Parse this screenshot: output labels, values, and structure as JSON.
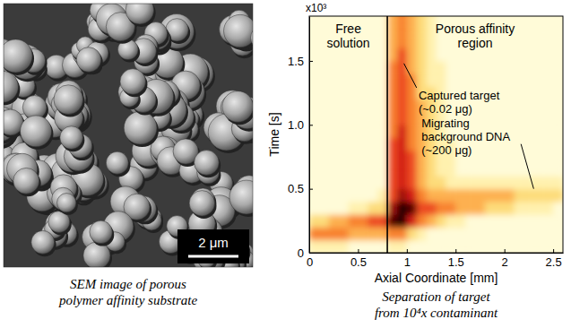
{
  "sem_panel": {
    "scale_bar": "2 μm",
    "caption": "SEM image of porous polymer affinity substrate"
  },
  "chart_data": {
    "type": "heatmap",
    "caption": "Separation of target from 10⁴x contaminant",
    "x_label": "Axial Coordinate [mm]",
    "y_label": "Time [s]",
    "y_multiplier": "x10³",
    "xlim": [
      0,
      2.6
    ],
    "ylim": [
      0,
      1.85
    ],
    "xticks": [
      0,
      0.5,
      1,
      1.5,
      2,
      2.5
    ],
    "yticks": [
      0,
      0.5,
      {
        "value": 1,
        "label": "1.0"
      },
      1.5
    ],
    "x_bins": [
      0,
      0.1,
      0.2,
      0.3,
      0.4,
      0.5,
      0.6,
      0.7,
      0.8,
      0.9,
      1,
      1.1,
      1.2,
      1.3,
      1.4,
      1.5,
      1.6,
      1.7,
      1.8,
      1.9,
      2,
      2.1,
      2.2,
      2.3,
      2.4,
      2.5,
      2.6
    ],
    "y_bins": [
      0,
      0.1,
      0.2,
      0.3,
      0.4,
      0.5,
      0.6,
      0.7,
      0.8,
      0.9,
      1,
      1.1,
      1.2,
      1.3,
      1.4,
      1.5,
      1.6,
      1.7,
      1.8,
      1.9
    ],
    "cells": [
      [
        1,
        1,
        1,
        1,
        0,
        0,
        0,
        0,
        1,
        1,
        0,
        0,
        0,
        0,
        0,
        0,
        0,
        0,
        0,
        0,
        0,
        0,
        0,
        0,
        0,
        0
      ],
      [
        4,
        4,
        4,
        4,
        3,
        3,
        3,
        3,
        4,
        4,
        2,
        1,
        0,
        0,
        0,
        0,
        0,
        0,
        0,
        0,
        0,
        0,
        0,
        0,
        0,
        0
      ],
      [
        2,
        2,
        3,
        3,
        4,
        4,
        5,
        5,
        8,
        9,
        6,
        4,
        3,
        2,
        1,
        1,
        0,
        0,
        0,
        0,
        0,
        0,
        0,
        0,
        0,
        0
      ],
      [
        0,
        0,
        0,
        0,
        1,
        1,
        2,
        2,
        7,
        9,
        8,
        5,
        5,
        4,
        4,
        3,
        3,
        3,
        2,
        2,
        2,
        1,
        1,
        1,
        1,
        0
      ],
      [
        0,
        0,
        0,
        0,
        0,
        0,
        0,
        1,
        5,
        7,
        6,
        4,
        3,
        3,
        3,
        3,
        3,
        3,
        3,
        3,
        3,
        2,
        2,
        2,
        2,
        2
      ],
      [
        0,
        0,
        0,
        0,
        0,
        0,
        0,
        0,
        5,
        6,
        5,
        3,
        2,
        2,
        1,
        1,
        1,
        1,
        1,
        1,
        1,
        1,
        1,
        1,
        1,
        1
      ],
      [
        0,
        0,
        0,
        0,
        0,
        0,
        0,
        0,
        5,
        6,
        5,
        3,
        2,
        1,
        1,
        0,
        0,
        0,
        0,
        0,
        0,
        0,
        0,
        0,
        0,
        0
      ],
      [
        0,
        0,
        0,
        0,
        0,
        0,
        0,
        0,
        5,
        6,
        5,
        3,
        2,
        1,
        1,
        0,
        0,
        0,
        0,
        0,
        0,
        0,
        0,
        0,
        0,
        0
      ],
      [
        0,
        0,
        0,
        0,
        0,
        0,
        0,
        0,
        5,
        6,
        4,
        3,
        2,
        1,
        1,
        0,
        0,
        0,
        0,
        0,
        0,
        0,
        0,
        0,
        0,
        0
      ],
      [
        0,
        0,
        0,
        0,
        0,
        0,
        0,
        0,
        4,
        6,
        4,
        3,
        2,
        1,
        0,
        0,
        0,
        0,
        0,
        0,
        0,
        0,
        0,
        0,
        0,
        0
      ],
      [
        0,
        0,
        0,
        0,
        0,
        0,
        0,
        0,
        4,
        5,
        4,
        3,
        2,
        1,
        0,
        0,
        0,
        0,
        0,
        0,
        0,
        0,
        0,
        0,
        0,
        0
      ],
      [
        0,
        0,
        0,
        0,
        0,
        0,
        0,
        0,
        4,
        5,
        4,
        3,
        2,
        1,
        0,
        0,
        0,
        0,
        0,
        0,
        0,
        0,
        0,
        0,
        0,
        0
      ],
      [
        0,
        0,
        0,
        0,
        0,
        0,
        0,
        0,
        4,
        5,
        4,
        2,
        2,
        1,
        0,
        0,
        0,
        0,
        0,
        0,
        0,
        0,
        0,
        0,
        0,
        0
      ],
      [
        0,
        0,
        0,
        0,
        0,
        0,
        0,
        0,
        4,
        5,
        4,
        2,
        1,
        1,
        0,
        0,
        0,
        0,
        0,
        0,
        0,
        0,
        0,
        0,
        0,
        0
      ],
      [
        0,
        0,
        0,
        0,
        0,
        0,
        0,
        0,
        4,
        5,
        3,
        2,
        1,
        1,
        0,
        0,
        0,
        0,
        0,
        0,
        0,
        0,
        0,
        0,
        0,
        0
      ],
      [
        0,
        0,
        0,
        0,
        0,
        0,
        0,
        0,
        3,
        5,
        3,
        2,
        1,
        0,
        0,
        0,
        0,
        0,
        0,
        0,
        0,
        0,
        0,
        0,
        0,
        0
      ],
      [
        0,
        0,
        0,
        0,
        0,
        0,
        0,
        0,
        3,
        4,
        3,
        2,
        1,
        0,
        0,
        0,
        0,
        0,
        0,
        0,
        0,
        0,
        0,
        0,
        0,
        0
      ],
      [
        0,
        0,
        0,
        0,
        0,
        0,
        0,
        0,
        3,
        4,
        3,
        2,
        1,
        0,
        0,
        0,
        0,
        0,
        0,
        0,
        0,
        0,
        0,
        0,
        0,
        0
      ],
      [
        0,
        0,
        0,
        0,
        0,
        0,
        0,
        0,
        3,
        4,
        3,
        2,
        1,
        0,
        0,
        0,
        0,
        0,
        0,
        0,
        0,
        0,
        0,
        0,
        0,
        0
      ]
    ],
    "zlim": [
      0,
      9
    ],
    "boundary": 0.8,
    "annotations": [
      "Free solution",
      "Porous affinity region",
      "Captured target (~0.02 μg)",
      "Migrating background DNA (~200 μg)"
    ]
  }
}
